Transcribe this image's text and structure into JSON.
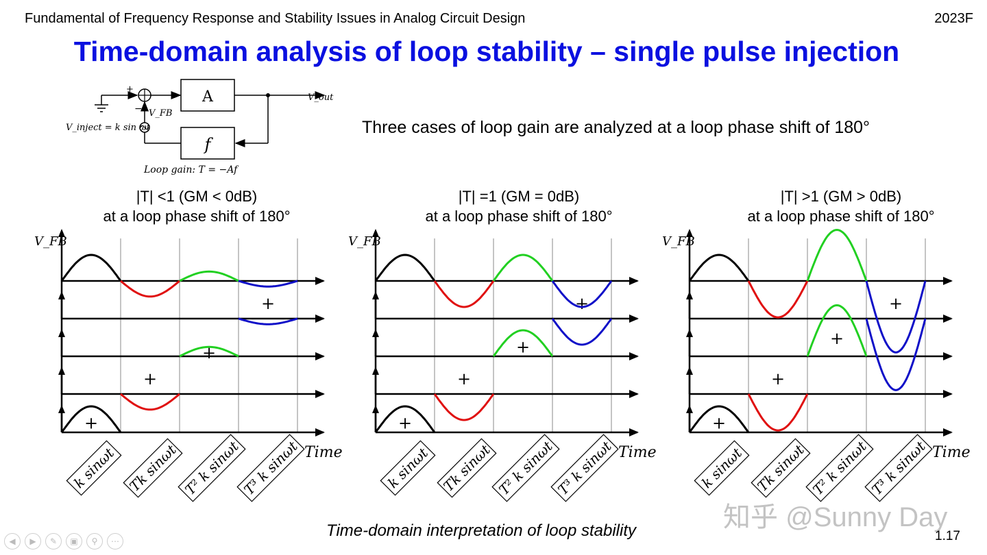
{
  "header": {
    "course_title": "Fundamental of Frequency Response and Stability Issues in Analog Circuit Design",
    "year": "2023F"
  },
  "slide": {
    "title": "Time-domain analysis of loop stability – single pulse injection",
    "intro": "Three cases of loop gain are analyzed at a loop phase shift of 180°",
    "caption": "Time-domain interpretation of loop stability",
    "page_number": "1.17",
    "watermark": "知乎 @Sunny Day"
  },
  "block_diagram": {
    "amp_label": "A",
    "feedback_label": "f",
    "output_label": "V_out",
    "fb_label": "V_FB",
    "inject_label": "V_inject = k sin ωt",
    "loop_gain_label": "Loop gain: T = −Af",
    "plus_sign": "+",
    "minus_sign": "−"
  },
  "cases": [
    {
      "heading_line1": "|T| <1 (GM < 0dB)",
      "heading_line2": "at a loop phase shift of 180°",
      "gain_ratio": 0.6
    },
    {
      "heading_line1": "|T| =1 (GM = 0dB)",
      "heading_line2": "at a loop phase shift of 180°",
      "gain_ratio": 1.0
    },
    {
      "heading_line1": "|T| >1 (GM > 0dB)",
      "heading_line2": "at a loop phase shift of 180°",
      "gain_ratio": 1.4
    }
  ],
  "axis_labels": {
    "y": "V_FB",
    "x": "Time",
    "sum_mark": "+"
  },
  "term_labels": [
    "k sinωt",
    "Tk sinωt",
    "T² k sinωt",
    "T³ k sinωt"
  ],
  "colors": {
    "title": "#0a10e0",
    "term0": "#000000",
    "term1": "#e01010",
    "term2": "#22d022",
    "term3": "#1010c8"
  },
  "icons": [
    "prev-icon",
    "next-icon",
    "pen-icon",
    "slides-icon",
    "zoom-icon",
    "more-icon"
  ]
}
